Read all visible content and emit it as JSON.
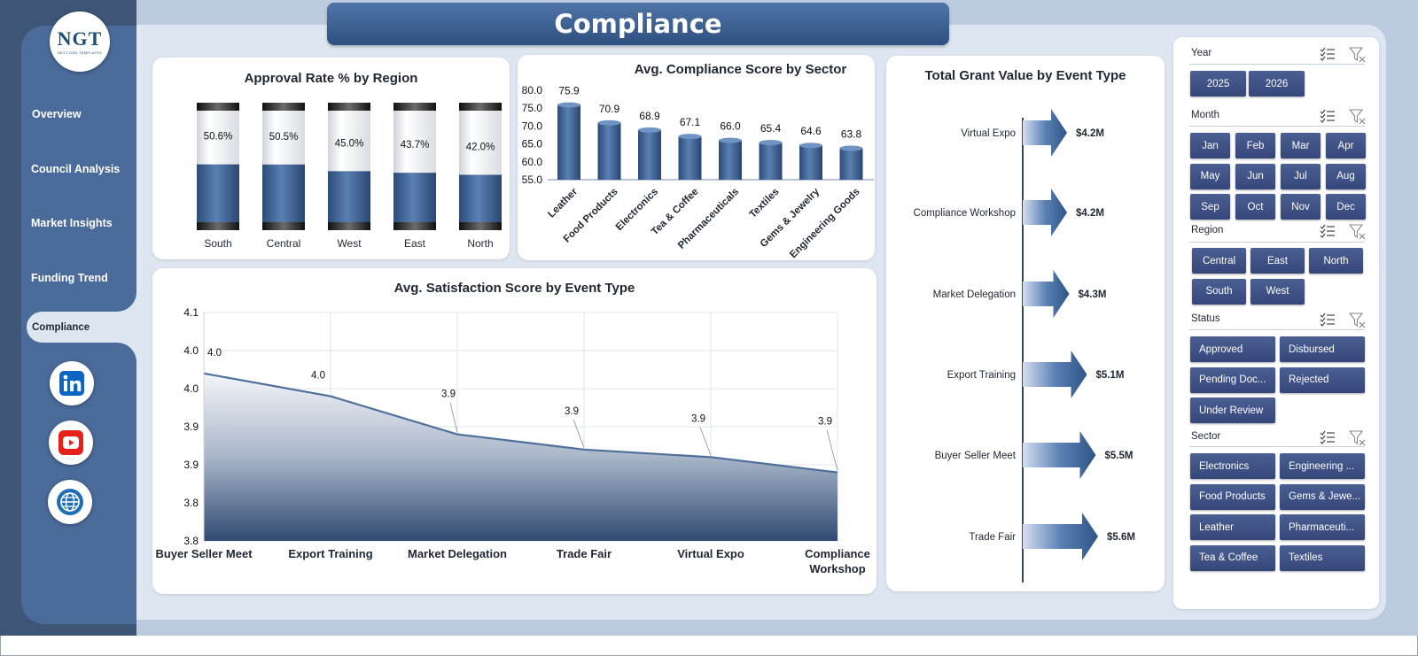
{
  "app": {
    "title": "Compliance",
    "logo": {
      "main": "NGT",
      "sub": "NEXT GEN TEMPLATES"
    },
    "nav": [
      {
        "label": "Overview"
      },
      {
        "label": "Council Analysis"
      },
      {
        "label": "Market Insights"
      },
      {
        "label": "Funding Trend"
      },
      {
        "label": "Compliance",
        "active": true
      }
    ],
    "social_icons": [
      "linkedin-icon",
      "youtube-icon",
      "globe-icon"
    ],
    "colors": {
      "primary": "#3f6595",
      "sidebar": "#4b6b9b",
      "chip": "#3f4f85"
    }
  },
  "chart_data": [
    {
      "id": "approval",
      "type": "bar",
      "title": "Approval Rate % by Region",
      "categories": [
        "South",
        "Central",
        "West",
        "East",
        "North"
      ],
      "values": [
        50.6,
        50.5,
        45.0,
        43.7,
        42.0
      ],
      "labels": [
        "50.6%",
        "50.5%",
        "45.0%",
        "43.7%",
        "42.0%"
      ],
      "ylim": [
        0,
        100
      ]
    },
    {
      "id": "compliance",
      "type": "bar",
      "title": "Avg. Compliance Score by Sector",
      "categories": [
        "Leather",
        "Food Products",
        "Electronics",
        "Tea & Coffee",
        "Pharmaceuticals",
        "Textiles",
        "Gems & Jewelry",
        "Engineering Goods"
      ],
      "values": [
        75.9,
        70.9,
        68.9,
        67.1,
        66.0,
        65.4,
        64.6,
        63.8
      ],
      "labels": [
        "75.9",
        "70.9",
        "68.9",
        "67.1",
        "66.0",
        "65.4",
        "64.6",
        "63.8"
      ],
      "yticks": [
        "80.0",
        "75.0",
        "70.0",
        "65.0",
        "60.0",
        "55.0"
      ],
      "ylim": [
        55,
        80
      ]
    },
    {
      "id": "grant",
      "type": "bar",
      "title": "Total Grant Value by Event Type",
      "categories": [
        "Virtual Expo",
        "Compliance Workshop",
        "Market Delegation",
        "Export Training",
        "Buyer Seller Meet",
        "Trade Fair"
      ],
      "values": [
        4.2,
        4.2,
        4.3,
        5.1,
        5.5,
        5.6
      ],
      "labels": [
        "$4.2M",
        "$4.2M",
        "$4.3M",
        "$5.1M",
        "$5.5M",
        "$5.6M"
      ],
      "unit": "$M"
    },
    {
      "id": "satisfaction",
      "type": "area",
      "title": "Avg. Satisfaction Score by Event Type",
      "categories": [
        "Buyer Seller Meet",
        "Export Training",
        "Market Delegation",
        "Trade Fair",
        "Virtual Expo",
        "Compliance Workshop"
      ],
      "values": [
        4.02,
        3.99,
        3.94,
        3.92,
        3.91,
        3.89
      ],
      "labels": [
        "4.0",
        "4.0",
        "3.9",
        "3.9",
        "3.9",
        "3.9"
      ],
      "yticks": [
        "4.1",
        "4.0",
        "4.0",
        "3.9",
        "3.9",
        "3.8",
        "3.8"
      ],
      "ylim": [
        3.8,
        4.1
      ],
      "grid": true
    }
  ],
  "slicers": [
    {
      "title": "Year",
      "items": [
        "2025",
        "2026"
      ]
    },
    {
      "title": "Month",
      "items": [
        "Jan",
        "Feb",
        "Mar",
        "Apr",
        "May",
        "Jun",
        "Jul",
        "Aug",
        "Sep",
        "Oct",
        "Nov",
        "Dec"
      ]
    },
    {
      "title": "Region",
      "items": [
        "Central",
        "East",
        "North",
        "South",
        "West"
      ]
    },
    {
      "title": "Status",
      "items": [
        "Approved",
        "Disbursed",
        "Pending Doc...",
        "Rejected",
        "Under Review"
      ]
    },
    {
      "title": "Sector",
      "items": [
        "Electronics",
        "Engineering ...",
        "Food Products",
        "Gems & Jewe...",
        "Leather",
        "Pharmaceuti...",
        "Tea & Coffee",
        "Textiles"
      ]
    }
  ]
}
